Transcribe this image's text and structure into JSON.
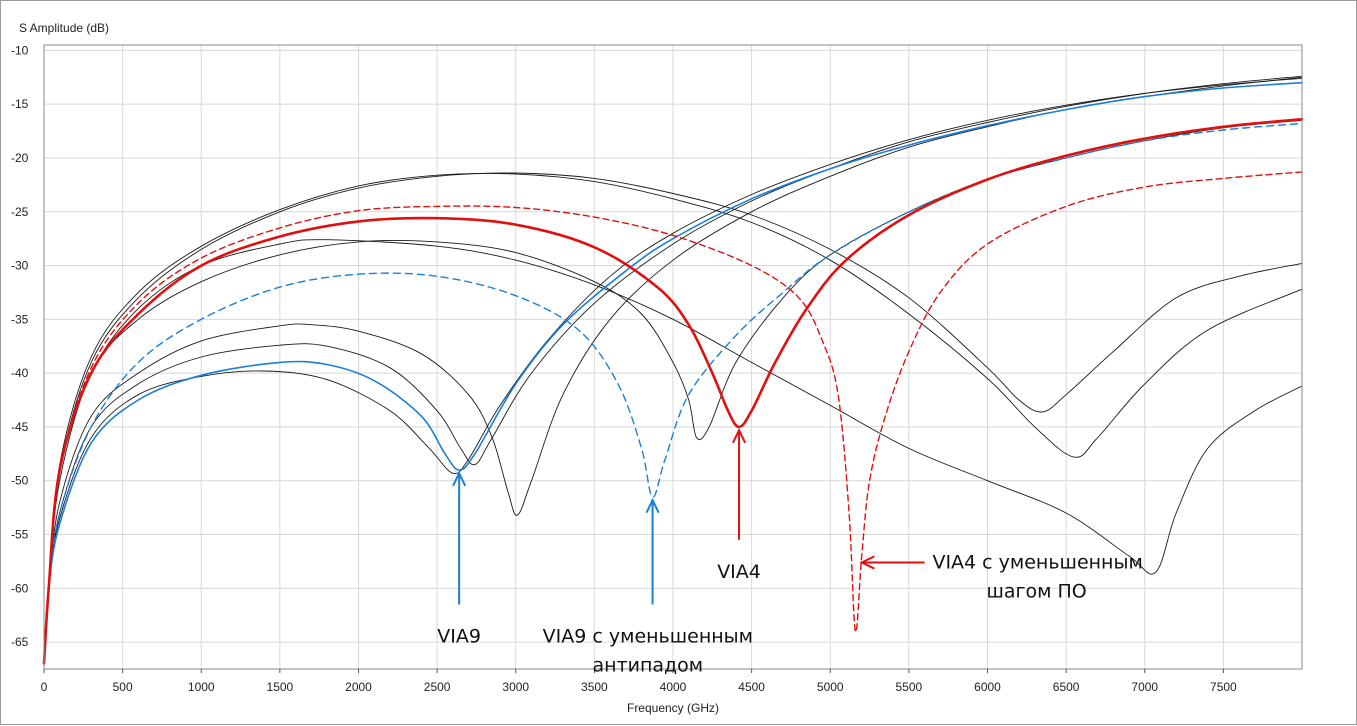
{
  "chart_data": {
    "type": "line",
    "title": "",
    "ylabel": "S Amplitude (dB)",
    "xlabel": "Frequency (GHz)",
    "xlim": [
      0,
      8000
    ],
    "ylim": [
      -67.5,
      -9.5
    ],
    "xticks": [
      0,
      500,
      1000,
      1500,
      2000,
      2500,
      3000,
      3500,
      4000,
      4500,
      5000,
      5500,
      6000,
      6500,
      7000,
      7500
    ],
    "yticks": [
      -10,
      -15,
      -20,
      -25,
      -30,
      -35,
      -40,
      -45,
      -50,
      -55,
      -60,
      -65
    ],
    "grid": true,
    "series": [
      {
        "name": "black-1",
        "color": "#1a1a1a",
        "width": 0.9,
        "dash": "",
        "points": [
          [
            0,
            -67
          ],
          [
            30,
            -60
          ],
          [
            100,
            -49
          ],
          [
            300,
            -39
          ],
          [
            600,
            -33
          ],
          [
            1000,
            -28.5
          ],
          [
            1500,
            -25
          ],
          [
            2000,
            -22.8
          ],
          [
            2500,
            -21.7
          ],
          [
            3000,
            -21.4
          ],
          [
            3500,
            -21.9
          ],
          [
            4000,
            -23.3
          ],
          [
            4500,
            -25.3
          ],
          [
            5000,
            -28.5
          ],
          [
            5500,
            -33
          ],
          [
            6000,
            -39.5
          ],
          [
            6200,
            -42.5
          ],
          [
            6350,
            -43.6
          ],
          [
            6500,
            -42
          ],
          [
            6800,
            -38
          ],
          [
            7200,
            -33
          ],
          [
            7600,
            -31
          ],
          [
            8000,
            -29.8
          ]
        ]
      },
      {
        "name": "black-2",
        "color": "#1a1a1a",
        "width": 0.9,
        "dash": "",
        "points": [
          [
            0,
            -67
          ],
          [
            30,
            -60
          ],
          [
            100,
            -48.5
          ],
          [
            300,
            -38.5
          ],
          [
            600,
            -32.5
          ],
          [
            1000,
            -28.2
          ],
          [
            1500,
            -24.8
          ],
          [
            2000,
            -22.6
          ],
          [
            2500,
            -21.6
          ],
          [
            3000,
            -21.5
          ],
          [
            3500,
            -22.2
          ],
          [
            4000,
            -23.8
          ],
          [
            4500,
            -26
          ],
          [
            5000,
            -29.5
          ],
          [
            5500,
            -34.5
          ],
          [
            6000,
            -40.5
          ],
          [
            6300,
            -45
          ],
          [
            6550,
            -47.8
          ],
          [
            6700,
            -46
          ],
          [
            7000,
            -41
          ],
          [
            7400,
            -36
          ],
          [
            8000,
            -32.2
          ]
        ]
      },
      {
        "name": "black-3",
        "color": "#1a1a1a",
        "width": 0.9,
        "dash": "",
        "points": [
          [
            0,
            -67
          ],
          [
            30,
            -60
          ],
          [
            100,
            -49
          ],
          [
            300,
            -40
          ],
          [
            600,
            -34
          ],
          [
            1000,
            -30
          ],
          [
            1500,
            -28
          ],
          [
            1800,
            -27.6
          ],
          [
            2500,
            -28.2
          ],
          [
            3000,
            -29.5
          ],
          [
            3500,
            -31.8
          ],
          [
            4000,
            -35
          ],
          [
            4500,
            -39
          ],
          [
            5000,
            -43
          ],
          [
            5500,
            -47
          ],
          [
            6000,
            -50
          ],
          [
            6500,
            -53
          ],
          [
            6900,
            -57
          ],
          [
            7070,
            -58.5
          ],
          [
            7200,
            -53
          ],
          [
            7400,
            -47
          ],
          [
            7700,
            -43.5
          ],
          [
            8000,
            -41.2
          ]
        ]
      },
      {
        "name": "black-4",
        "color": "#1a1a1a",
        "width": 0.9,
        "dash": "",
        "points": [
          [
            0,
            -67
          ],
          [
            30,
            -60
          ],
          [
            100,
            -52
          ],
          [
            300,
            -44
          ],
          [
            600,
            -40
          ],
          [
            1000,
            -37
          ],
          [
            1500,
            -35.6
          ],
          [
            1700,
            -35.5
          ],
          [
            2000,
            -36.1
          ],
          [
            2400,
            -38.2
          ],
          [
            2700,
            -42
          ],
          [
            2850,
            -46
          ],
          [
            2950,
            -51
          ],
          [
            3010,
            -53.2
          ],
          [
            3100,
            -50
          ],
          [
            3300,
            -42
          ],
          [
            3600,
            -35
          ],
          [
            4000,
            -29.5
          ],
          [
            4500,
            -25
          ],
          [
            5000,
            -21.7
          ],
          [
            5500,
            -19
          ],
          [
            6000,
            -17.1
          ],
          [
            6500,
            -15.5
          ],
          [
            7000,
            -14.3
          ],
          [
            7500,
            -13.3
          ],
          [
            8000,
            -12.5
          ]
        ]
      },
      {
        "name": "black-5",
        "color": "#1a1a1a",
        "width": 0.9,
        "dash": "",
        "points": [
          [
            0,
            -67
          ],
          [
            30,
            -60
          ],
          [
            100,
            -53
          ],
          [
            300,
            -45
          ],
          [
            600,
            -41
          ],
          [
            1000,
            -38.5
          ],
          [
            1500,
            -37.4
          ],
          [
            1800,
            -37.5
          ],
          [
            2200,
            -39.5
          ],
          [
            2500,
            -43.5
          ],
          [
            2650,
            -47
          ],
          [
            2740,
            -48.5
          ],
          [
            2850,
            -46
          ],
          [
            3100,
            -40
          ],
          [
            3500,
            -33.5
          ],
          [
            4000,
            -28
          ],
          [
            4500,
            -24
          ],
          [
            5000,
            -21
          ],
          [
            5500,
            -18.5
          ],
          [
            6000,
            -16.7
          ],
          [
            6500,
            -15.2
          ],
          [
            7000,
            -14
          ],
          [
            7500,
            -13.1
          ],
          [
            8000,
            -12.4
          ]
        ]
      },
      {
        "name": "black-6",
        "color": "#1a1a1a",
        "width": 0.9,
        "dash": "",
        "points": [
          [
            0,
            -67
          ],
          [
            30,
            -60
          ],
          [
            100,
            -53.5
          ],
          [
            300,
            -46
          ],
          [
            600,
            -42
          ],
          [
            1000,
            -40.3
          ],
          [
            1400,
            -39.8
          ],
          [
            1800,
            -40.6
          ],
          [
            2200,
            -43.5
          ],
          [
            2450,
            -47
          ],
          [
            2600,
            -49.3
          ],
          [
            2700,
            -48
          ],
          [
            2900,
            -43
          ],
          [
            3200,
            -37
          ],
          [
            3600,
            -31
          ],
          [
            4000,
            -27
          ],
          [
            4500,
            -23.4
          ],
          [
            5000,
            -20.6
          ],
          [
            5500,
            -18.3
          ],
          [
            6000,
            -16.5
          ],
          [
            6500,
            -15.1
          ],
          [
            7000,
            -14
          ],
          [
            7500,
            -13.2
          ],
          [
            8000,
            -12.6
          ]
        ]
      },
      {
        "name": "black-7",
        "color": "#1a1a1a",
        "width": 0.9,
        "dash": "",
        "points": [
          [
            0,
            -67
          ],
          [
            30,
            -60
          ],
          [
            100,
            -50
          ],
          [
            300,
            -40
          ],
          [
            600,
            -35
          ],
          [
            1000,
            -31.5
          ],
          [
            1500,
            -29
          ],
          [
            2000,
            -27.8
          ],
          [
            2500,
            -27.8
          ],
          [
            3000,
            -28.8
          ],
          [
            3500,
            -31.5
          ],
          [
            3800,
            -34.5
          ],
          [
            4000,
            -39
          ],
          [
            4100,
            -42.5
          ],
          [
            4150,
            -46
          ],
          [
            4230,
            -45
          ],
          [
            4400,
            -39
          ],
          [
            4700,
            -33
          ],
          [
            5000,
            -29
          ],
          [
            5500,
            -25
          ],
          [
            6000,
            -22
          ],
          [
            6500,
            -20
          ],
          [
            7000,
            -18.4
          ],
          [
            7500,
            -17.2
          ],
          [
            8000,
            -16.5
          ]
        ]
      },
      {
        "name": "blue-solid",
        "color": "#1a7fd9",
        "width": 1.6,
        "dash": "",
        "points": [
          [
            0,
            -67
          ],
          [
            30,
            -60
          ],
          [
            100,
            -54
          ],
          [
            300,
            -46.5
          ],
          [
            600,
            -42.5
          ],
          [
            1000,
            -40.2
          ],
          [
            1500,
            -39
          ],
          [
            1800,
            -39.2
          ],
          [
            2100,
            -40.7
          ],
          [
            2400,
            -44
          ],
          [
            2550,
            -47.5
          ],
          [
            2640,
            -49
          ],
          [
            2740,
            -47.5
          ],
          [
            3000,
            -41
          ],
          [
            3300,
            -35.5
          ],
          [
            3700,
            -30.5
          ],
          [
            4000,
            -27.5
          ],
          [
            4500,
            -23.8
          ],
          [
            5000,
            -21
          ],
          [
            5500,
            -18.8
          ],
          [
            6000,
            -17
          ],
          [
            6500,
            -15.5
          ],
          [
            7000,
            -14.3
          ],
          [
            7500,
            -13.5
          ],
          [
            8000,
            -13
          ]
        ]
      },
      {
        "name": "blue-dashed",
        "color": "#1a7fd9",
        "width": 1.4,
        "dash": "7,5",
        "points": [
          [
            0,
            -67
          ],
          [
            30,
            -60
          ],
          [
            100,
            -53
          ],
          [
            300,
            -45
          ],
          [
            600,
            -39
          ],
          [
            1000,
            -35
          ],
          [
            1500,
            -32
          ],
          [
            2000,
            -30.8
          ],
          [
            2500,
            -31
          ],
          [
            3000,
            -32.8
          ],
          [
            3400,
            -36
          ],
          [
            3650,
            -41
          ],
          [
            3800,
            -47
          ],
          [
            3870,
            -51.5
          ],
          [
            3950,
            -48
          ],
          [
            4100,
            -42
          ],
          [
            4400,
            -36.5
          ],
          [
            4700,
            -32.5
          ],
          [
            5000,
            -29
          ],
          [
            5500,
            -25
          ],
          [
            6000,
            -22
          ],
          [
            6500,
            -20
          ],
          [
            7000,
            -18.4
          ],
          [
            7500,
            -17.4
          ],
          [
            8000,
            -16.8
          ]
        ]
      },
      {
        "name": "red-solid",
        "color": "#e01010",
        "width": 2.6,
        "dash": "",
        "points": [
          [
            0,
            -67
          ],
          [
            30,
            -60
          ],
          [
            100,
            -49
          ],
          [
            300,
            -40
          ],
          [
            600,
            -34.5
          ],
          [
            1000,
            -30
          ],
          [
            1500,
            -27.3
          ],
          [
            2000,
            -25.9
          ],
          [
            2500,
            -25.6
          ],
          [
            3000,
            -26.2
          ],
          [
            3500,
            -28.3
          ],
          [
            3900,
            -32
          ],
          [
            4100,
            -35.5
          ],
          [
            4250,
            -40
          ],
          [
            4350,
            -43.5
          ],
          [
            4420,
            -45
          ],
          [
            4500,
            -43.5
          ],
          [
            4650,
            -39
          ],
          [
            4850,
            -34
          ],
          [
            5100,
            -29.5
          ],
          [
            5500,
            -25.3
          ],
          [
            6000,
            -22
          ],
          [
            6500,
            -19.8
          ],
          [
            7000,
            -18.2
          ],
          [
            7500,
            -17.1
          ],
          [
            8000,
            -16.4
          ]
        ]
      },
      {
        "name": "red-dashed",
        "color": "#e01010",
        "width": 1.4,
        "dash": "6,4",
        "points": [
          [
            0,
            -67
          ],
          [
            30,
            -60
          ],
          [
            100,
            -49
          ],
          [
            300,
            -39.5
          ],
          [
            600,
            -33.5
          ],
          [
            1000,
            -29.3
          ],
          [
            1500,
            -26.5
          ],
          [
            2000,
            -24.9
          ],
          [
            2500,
            -24.5
          ],
          [
            3000,
            -24.6
          ],
          [
            3500,
            -25.5
          ],
          [
            4000,
            -27.2
          ],
          [
            4500,
            -30
          ],
          [
            4800,
            -33
          ],
          [
            4950,
            -37
          ],
          [
            5050,
            -42
          ],
          [
            5120,
            -53
          ],
          [
            5160,
            -64
          ],
          [
            5200,
            -57
          ],
          [
            5250,
            -50
          ],
          [
            5350,
            -44
          ],
          [
            5500,
            -38
          ],
          [
            5700,
            -32.5
          ],
          [
            6000,
            -28
          ],
          [
            6500,
            -24.5
          ],
          [
            7000,
            -22.7
          ],
          [
            7500,
            -21.9
          ],
          [
            8000,
            -21.3
          ]
        ]
      }
    ],
    "annotations": [
      {
        "name": "via9",
        "text": "VIA9",
        "color": "#1a7fd9",
        "arrow": [
          [
            2640,
            -49.3
          ],
          [
            2640,
            -61.5
          ]
        ],
        "text_pos": [
          2640,
          -64.5
        ],
        "anchor": "middle"
      },
      {
        "name": "via9-antipad",
        "text": [
          "VIA9 с уменьшенным",
          "антипадом"
        ],
        "color": "#1a7fd9",
        "arrow": [
          [
            3870,
            -51.8
          ],
          [
            3870,
            -61.5
          ]
        ],
        "text_pos": [
          3840,
          -64.5
        ],
        "anchor": "middle"
      },
      {
        "name": "via4",
        "text": "VIA4",
        "color": "#e01010",
        "arrow": [
          [
            4420,
            -45.3
          ],
          [
            4420,
            -55.5
          ]
        ],
        "text_pos": [
          4420,
          -58.5
        ],
        "anchor": "middle"
      },
      {
        "name": "via4-pitch",
        "text": [
          "VIA4 с уменьшенным",
          "шагом ПО"
        ],
        "color": "#e01010",
        "arrow": [
          [
            5200,
            -57.6
          ],
          [
            5600,
            -57.6
          ]
        ],
        "text_pos": [
          5650,
          -57.6
        ],
        "anchor": "start"
      }
    ]
  }
}
